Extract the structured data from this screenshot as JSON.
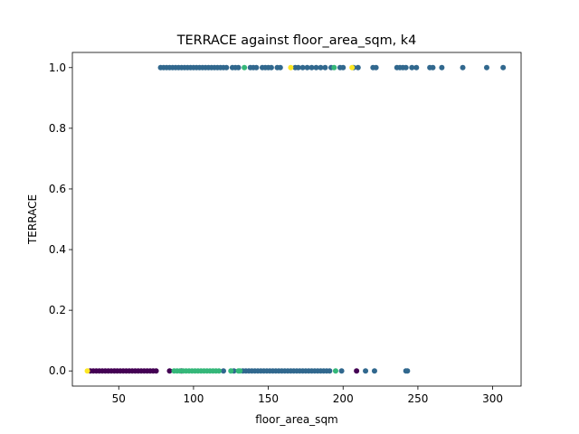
{
  "chart_data": {
    "type": "scatter",
    "title": "TERRACE against floor_area_sqm, k4",
    "xlabel": "floor_area_sqm",
    "ylabel": "TERRACE",
    "xlim": [
      19,
      319
    ],
    "ylim": [
      -0.05,
      1.05
    ],
    "xticks": [
      50,
      100,
      150,
      200,
      250,
      300
    ],
    "yticks": [
      0.0,
      0.2,
      0.4,
      0.6,
      0.8,
      1.0
    ],
    "xtick_labels": [
      "50",
      "100",
      "150",
      "200",
      "250",
      "300"
    ],
    "ytick_labels": [
      "0.0",
      "0.2",
      "0.4",
      "0.6",
      "0.8",
      "1.0"
    ],
    "grid": false,
    "legend": false,
    "colors": {
      "cluster_0": "#440154",
      "cluster_1": "#31688e",
      "cluster_2": "#35b779",
      "cluster_3": "#fde725"
    },
    "series": [
      {
        "cluster": "cluster_0",
        "points": [
          [
            31,
            0
          ],
          [
            33,
            0
          ],
          [
            35,
            0
          ],
          [
            37,
            0
          ],
          [
            39,
            0
          ],
          [
            41,
            0
          ],
          [
            43,
            0
          ],
          [
            45,
            0
          ],
          [
            47,
            0
          ],
          [
            49,
            0
          ],
          [
            51,
            0
          ],
          [
            53,
            0
          ],
          [
            55,
            0
          ],
          [
            57,
            0
          ],
          [
            59,
            0
          ],
          [
            61,
            0
          ],
          [
            63,
            0
          ],
          [
            65,
            0
          ],
          [
            67,
            0
          ],
          [
            69,
            0
          ],
          [
            71,
            0
          ],
          [
            73,
            0
          ],
          [
            75,
            0
          ],
          [
            84,
            0
          ],
          [
            92,
            0
          ],
          [
            209,
            0
          ]
        ]
      },
      {
        "cluster": "cluster_1",
        "points": [
          [
            120,
            0
          ],
          [
            127,
            0
          ],
          [
            133,
            0
          ],
          [
            135,
            0
          ],
          [
            137,
            0
          ],
          [
            139,
            0
          ],
          [
            141,
            0
          ],
          [
            143,
            0
          ],
          [
            145,
            0
          ],
          [
            147,
            0
          ],
          [
            149,
            0
          ],
          [
            151,
            0
          ],
          [
            153,
            0
          ],
          [
            155,
            0
          ],
          [
            157,
            0
          ],
          [
            159,
            0
          ],
          [
            161,
            0
          ],
          [
            163,
            0
          ],
          [
            165,
            0
          ],
          [
            167,
            0
          ],
          [
            169,
            0
          ],
          [
            171,
            0
          ],
          [
            173,
            0
          ],
          [
            175,
            0
          ],
          [
            177,
            0
          ],
          [
            179,
            0
          ],
          [
            181,
            0
          ],
          [
            183,
            0
          ],
          [
            185,
            0
          ],
          [
            187,
            0
          ],
          [
            189,
            0
          ],
          [
            191,
            0
          ],
          [
            199,
            0
          ],
          [
            215,
            0
          ],
          [
            221,
            0
          ],
          [
            242,
            0
          ],
          [
            243,
            0
          ],
          [
            78,
            1
          ],
          [
            80,
            1
          ],
          [
            82,
            1
          ],
          [
            84,
            1
          ],
          [
            86,
            1
          ],
          [
            88,
            1
          ],
          [
            90,
            1
          ],
          [
            92,
            1
          ],
          [
            94,
            1
          ],
          [
            96,
            1
          ],
          [
            98,
            1
          ],
          [
            100,
            1
          ],
          [
            102,
            1
          ],
          [
            104,
            1
          ],
          [
            106,
            1
          ],
          [
            108,
            1
          ],
          [
            110,
            1
          ],
          [
            112,
            1
          ],
          [
            114,
            1
          ],
          [
            116,
            1
          ],
          [
            118,
            1
          ],
          [
            120,
            1
          ],
          [
            122,
            1
          ],
          [
            126,
            1
          ],
          [
            128,
            1
          ],
          [
            130,
            1
          ],
          [
            138,
            1
          ],
          [
            140,
            1
          ],
          [
            142,
            1
          ],
          [
            146,
            1
          ],
          [
            148,
            1
          ],
          [
            150,
            1
          ],
          [
            152,
            1
          ],
          [
            156,
            1
          ],
          [
            158,
            1
          ],
          [
            168,
            1
          ],
          [
            170,
            1
          ],
          [
            173,
            1
          ],
          [
            176,
            1
          ],
          [
            179,
            1
          ],
          [
            182,
            1
          ],
          [
            185,
            1
          ],
          [
            188,
            1
          ],
          [
            192,
            1
          ],
          [
            198,
            1
          ],
          [
            200,
            1
          ],
          [
            207,
            1
          ],
          [
            210,
            1
          ],
          [
            220,
            1
          ],
          [
            222,
            1
          ],
          [
            236,
            1
          ],
          [
            238,
            1
          ],
          [
            240,
            1
          ],
          [
            242,
            1
          ],
          [
            246,
            1
          ],
          [
            249,
            1
          ],
          [
            258,
            1
          ],
          [
            260,
            1
          ],
          [
            266,
            1
          ],
          [
            280,
            1
          ],
          [
            296,
            1
          ],
          [
            307,
            1
          ]
        ]
      },
      {
        "cluster": "cluster_2",
        "points": [
          [
            87,
            0
          ],
          [
            89,
            0
          ],
          [
            91,
            0
          ],
          [
            93,
            0
          ],
          [
            95,
            0
          ],
          [
            97,
            0
          ],
          [
            99,
            0
          ],
          [
            101,
            0
          ],
          [
            103,
            0
          ],
          [
            105,
            0
          ],
          [
            107,
            0
          ],
          [
            109,
            0
          ],
          [
            111,
            0
          ],
          [
            113,
            0
          ],
          [
            115,
            0
          ],
          [
            117,
            0
          ],
          [
            125,
            0
          ],
          [
            130,
            0
          ],
          [
            131,
            0
          ],
          [
            195,
            0
          ],
          [
            134,
            1
          ],
          [
            194,
            1
          ]
        ]
      },
      {
        "cluster": "cluster_3",
        "points": [
          [
            29,
            0
          ],
          [
            165,
            1
          ],
          [
            206,
            1
          ]
        ]
      }
    ]
  }
}
